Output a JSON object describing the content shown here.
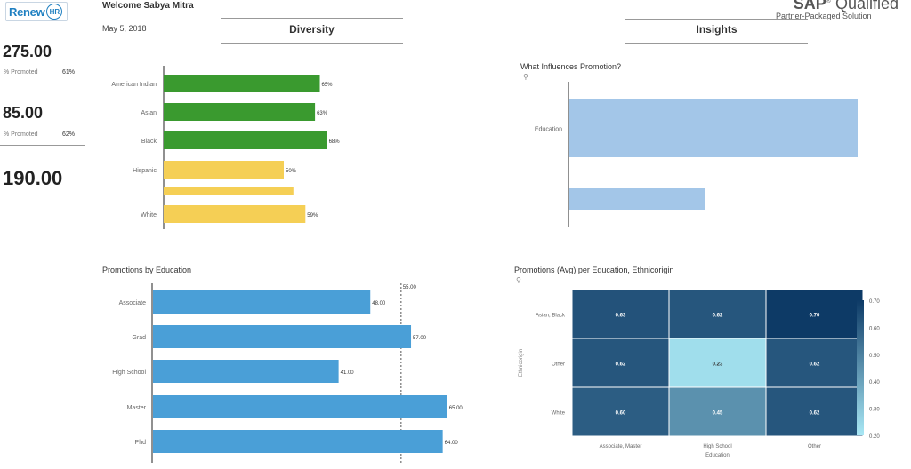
{
  "header": {
    "logo_text": "Renew",
    "logo_badge": "HR",
    "welcome": "Welcome Sabya Mitra",
    "date": "May 5, 2018",
    "sap_brand": "SAP",
    "sap_qualified": "Qualified",
    "sap_subtitle": "Partner-Packaged Solution"
  },
  "sections": {
    "diversity": "Diversity",
    "insights": "Insights"
  },
  "kpis": [
    {
      "value": "275.00",
      "label": "% Promoted",
      "pct": "61%"
    },
    {
      "value": "85.00",
      "label": "% Promoted",
      "pct": "62%"
    },
    {
      "value": "190.00"
    }
  ],
  "colors": {
    "green": "#3a9a2f",
    "yellow": "#f5cf55",
    "blue_bar": "#4a9fd7",
    "light_blue": "#a3c6e8",
    "heat_dark": "#0d3a66",
    "heat_light": "#a9e8f5"
  },
  "chart_data": [
    {
      "type": "bar",
      "orientation": "horizontal",
      "title": "",
      "categories": [
        "American Indian",
        "Asian",
        "Black",
        "Hispanic",
        "",
        "White"
      ],
      "values": [
        65,
        63,
        68,
        50,
        54,
        59
      ],
      "labels": [
        "65%",
        "63%",
        "68%",
        "50%",
        "",
        "59%"
      ],
      "colors": [
        "#3a9a2f",
        "#3a9a2f",
        "#3a9a2f",
        "#f5cf55",
        "#f5cf55",
        "#f5cf55"
      ],
      "thin": [
        false,
        false,
        false,
        false,
        true,
        false
      ],
      "xlim": [
        0,
        100
      ]
    },
    {
      "type": "bar",
      "orientation": "horizontal",
      "title": "What Influences Promotion?",
      "categories": [
        "Education",
        ""
      ],
      "values": [
        1.0,
        0.47
      ],
      "xlim": [
        0,
        1
      ]
    },
    {
      "type": "bar",
      "orientation": "horizontal",
      "title": "Promotions by Education",
      "categories": [
        "Associate",
        "Grad",
        "High School",
        "Master",
        "Phd"
      ],
      "values": [
        48.0,
        57.0,
        41.0,
        65.0,
        64.0
      ],
      "labels": [
        "48.00",
        "57.00",
        "41.00",
        "65.00",
        "64.00"
      ],
      "reference_line": {
        "value": 55.0,
        "label": "55.00"
      },
      "xlim": [
        0,
        68
      ]
    },
    {
      "type": "heatmap",
      "title": "Promotions (Avg) per Education, Ethnicorigin",
      "xlabel": "Education",
      "ylabel": "Ethnicorigin",
      "x": [
        "Associate, Master",
        "High School",
        "Other"
      ],
      "y": [
        "Asian, Black",
        "Other",
        "White"
      ],
      "values": [
        [
          0.63,
          0.62,
          0.7
        ],
        [
          0.62,
          0.23,
          0.62
        ],
        [
          0.6,
          0.45,
          0.62
        ]
      ],
      "value_labels": [
        [
          "0.63",
          "0.62",
          "0.70"
        ],
        [
          "0.62",
          "0.23",
          "0.62"
        ],
        [
          "0.60",
          "0.45",
          "0.62"
        ]
      ],
      "colorbar": {
        "min": 0.2,
        "max": 0.7,
        "ticks": [
          "0.70",
          "0.60",
          "0.50",
          "0.40",
          "0.30",
          "0.20"
        ]
      }
    }
  ]
}
